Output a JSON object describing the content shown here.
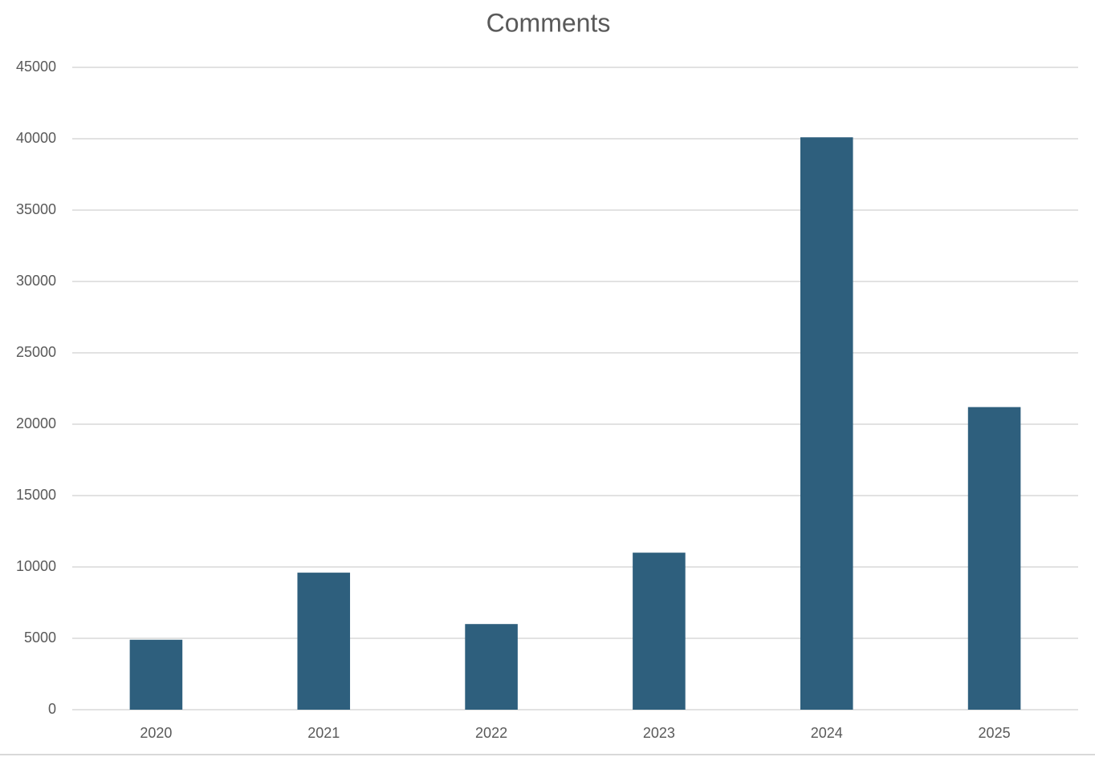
{
  "chart_data": {
    "type": "bar",
    "title": "Comments",
    "categories": [
      "2020",
      "2021",
      "2022",
      "2023",
      "2024",
      "2025"
    ],
    "values": [
      4900,
      9600,
      6000,
      11000,
      40100,
      21200
    ],
    "color": "#2e5f7d",
    "ylim": [
      0,
      45000
    ],
    "yticks": [
      0,
      5000,
      10000,
      15000,
      20000,
      25000,
      30000,
      35000,
      40000,
      45000
    ],
    "grid": true
  }
}
